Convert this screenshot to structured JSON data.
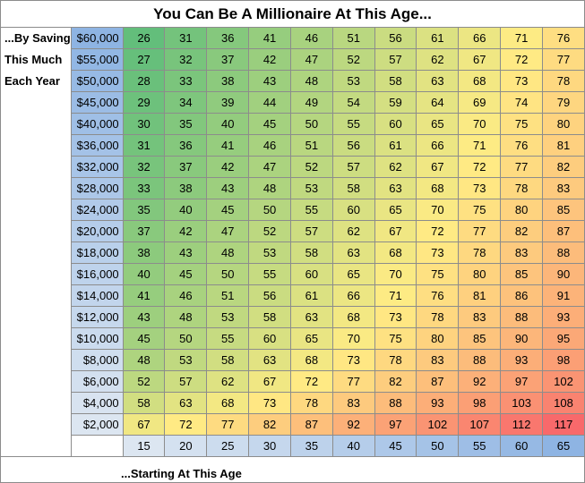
{
  "title": "You Can Be A Millionaire At This Age...",
  "row_label_lines": [
    "...By Saving",
    "This Much",
    "Each Year"
  ],
  "footer": "...Starting At This Age",
  "savings": [
    "$60,000",
    "$55,000",
    "$50,000",
    "$45,000",
    "$40,000",
    "$36,000",
    "$32,000",
    "$28,000",
    "$24,000",
    "$20,000",
    "$18,000",
    "$16,000",
    "$14,000",
    "$12,000",
    "$10,000",
    "$8,000",
    "$6,000",
    "$4,000",
    "$2,000"
  ],
  "starting_ages": [
    "15",
    "20",
    "25",
    "30",
    "35",
    "40",
    "45",
    "50",
    "55",
    "60",
    "65"
  ],
  "millionaire_ages": [
    [
      "26",
      "31",
      "36",
      "41",
      "46",
      "51",
      "56",
      "61",
      "66",
      "71",
      "76"
    ],
    [
      "27",
      "32",
      "37",
      "42",
      "47",
      "52",
      "57",
      "62",
      "67",
      "72",
      "77"
    ],
    [
      "28",
      "33",
      "38",
      "43",
      "48",
      "53",
      "58",
      "63",
      "68",
      "73",
      "78"
    ],
    [
      "29",
      "34",
      "39",
      "44",
      "49",
      "54",
      "59",
      "64",
      "69",
      "74",
      "79"
    ],
    [
      "30",
      "35",
      "40",
      "45",
      "50",
      "55",
      "60",
      "65",
      "70",
      "75",
      "80"
    ],
    [
      "31",
      "36",
      "41",
      "46",
      "51",
      "56",
      "61",
      "66",
      "71",
      "76",
      "81"
    ],
    [
      "32",
      "37",
      "42",
      "47",
      "52",
      "57",
      "62",
      "67",
      "72",
      "77",
      "82"
    ],
    [
      "33",
      "38",
      "43",
      "48",
      "53",
      "58",
      "63",
      "68",
      "73",
      "78",
      "83"
    ],
    [
      "35",
      "40",
      "45",
      "50",
      "55",
      "60",
      "65",
      "70",
      "75",
      "80",
      "85"
    ],
    [
      "37",
      "42",
      "47",
      "52",
      "57",
      "62",
      "67",
      "72",
      "77",
      "82",
      "87"
    ],
    [
      "38",
      "43",
      "48",
      "53",
      "58",
      "63",
      "68",
      "73",
      "78",
      "83",
      "88"
    ],
    [
      "40",
      "45",
      "50",
      "55",
      "60",
      "65",
      "70",
      "75",
      "80",
      "85",
      "90"
    ],
    [
      "41",
      "46",
      "51",
      "56",
      "61",
      "66",
      "71",
      "76",
      "81",
      "86",
      "91"
    ],
    [
      "43",
      "48",
      "53",
      "58",
      "63",
      "68",
      "73",
      "78",
      "83",
      "88",
      "93"
    ],
    [
      "45",
      "50",
      "55",
      "60",
      "65",
      "70",
      "75",
      "80",
      "85",
      "90",
      "95"
    ],
    [
      "48",
      "53",
      "58",
      "63",
      "68",
      "73",
      "78",
      "83",
      "88",
      "93",
      "98"
    ],
    [
      "52",
      "57",
      "62",
      "67",
      "72",
      "77",
      "82",
      "87",
      "92",
      "97",
      "102"
    ],
    [
      "58",
      "63",
      "68",
      "73",
      "78",
      "83",
      "88",
      "93",
      "98",
      "103",
      "108"
    ],
    [
      "67",
      "72",
      "77",
      "82",
      "87",
      "92",
      "97",
      "102",
      "107",
      "112",
      "117"
    ]
  ],
  "colors": {
    "scale_low": "#63be7b",
    "scale_mid": "#ffeb84",
    "scale_high": "#f8696b",
    "saving_high": "#8eb4e3",
    "saving_low": "#dce6f1",
    "start_low": "#dce6f1",
    "start_high": "#8eb4e3",
    "grid_line": "#8c8c8c"
  }
}
